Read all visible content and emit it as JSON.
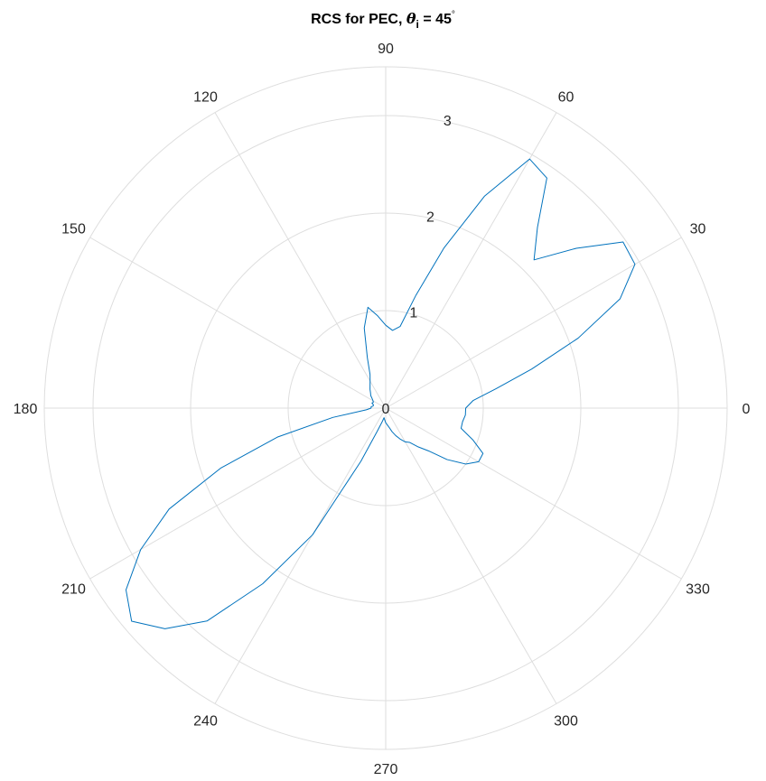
{
  "chart_data": {
    "type": "line",
    "coordinate_system": "polar",
    "angle_unit": "degrees",
    "title": {
      "prefix": "RCS for PEC, ",
      "symbol": "θ",
      "subscript": "i",
      "suffix": " = 45",
      "degree_mark": "°"
    },
    "theta_ticks": [
      0,
      30,
      60,
      90,
      120,
      150,
      180,
      210,
      240,
      270,
      300,
      330
    ],
    "theta_tick_labels": [
      "0",
      "30",
      "60",
      "90",
      "120",
      "150",
      "180",
      "210",
      "240",
      "270",
      "300",
      "330"
    ],
    "r_ticks": [
      0,
      1,
      2,
      3
    ],
    "r_tick_labels": [
      "0",
      "1",
      "2",
      "3"
    ],
    "rlim": [
      0,
      3.5
    ],
    "r_label_angle_deg": 80,
    "grid": true,
    "series": [
      {
        "color": "#0072BD",
        "theta": [
          0,
          5,
          10,
          15,
          20,
          25,
          30,
          35,
          40,
          45,
          50,
          55,
          60,
          65,
          70,
          75,
          80,
          85,
          90,
          95,
          100,
          105,
          110,
          115,
          120,
          125,
          130,
          135,
          140,
          145,
          150,
          155,
          160,
          165,
          170,
          175,
          180,
          185,
          190,
          195,
          200,
          205,
          210,
          215,
          220,
          225,
          230,
          235,
          240,
          245,
          250,
          255,
          260,
          265,
          270,
          275,
          280,
          285,
          290,
          295,
          300,
          305,
          310,
          315,
          320,
          325,
          330,
          335,
          340,
          345,
          350,
          355
        ],
        "r": [
          0.82,
          0.9,
          1.15,
          1.55,
          2.1,
          2.65,
          2.95,
          2.97,
          2.55,
          2.15,
          2.42,
          2.88,
          2.95,
          2.4,
          1.75,
          1.2,
          0.85,
          0.8,
          0.85,
          0.95,
          1.05,
          0.85,
          0.55,
          0.38,
          0.32,
          0.28,
          0.25,
          0.22,
          0.2,
          0.17,
          0.15,
          0.14,
          0.15,
          0.13,
          0.13,
          0.15,
          0.15,
          0.2,
          0.55,
          1.15,
          1.8,
          2.45,
          2.9,
          3.25,
          3.4,
          3.2,
          2.85,
          2.2,
          1.5,
          0.6,
          0.25,
          0.15,
          0.1,
          0.12,
          0.15,
          0.17,
          0.2,
          0.25,
          0.3,
          0.35,
          0.4,
          0.43,
          0.52,
          0.62,
          0.82,
          1.0,
          1.1,
          1.1,
          0.95,
          0.8,
          0.8,
          0.82
        ]
      }
    ]
  }
}
